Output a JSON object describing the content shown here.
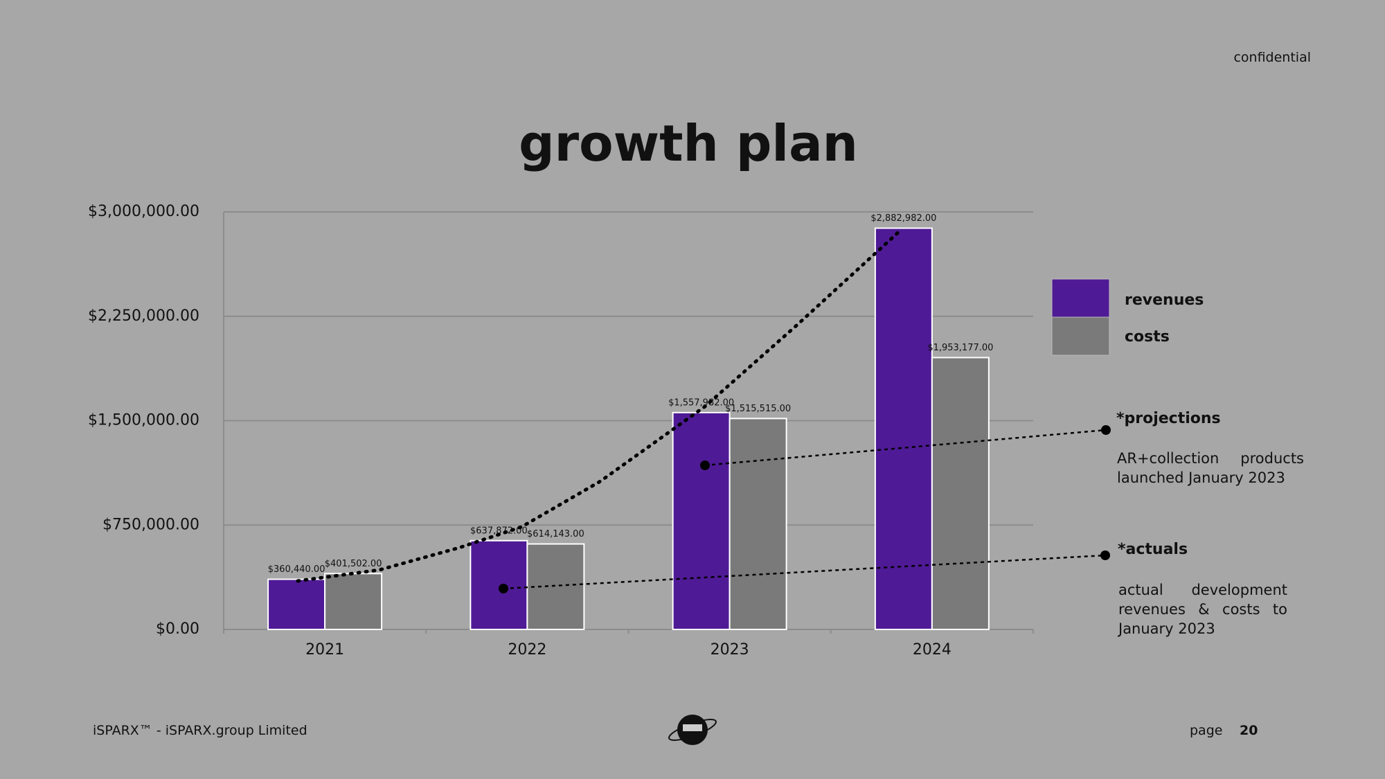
{
  "header": {
    "tag": "confidential"
  },
  "chart_data": {
    "type": "bar",
    "title": "growth plan",
    "categories": [
      "2021",
      "2022",
      "2023",
      "2024"
    ],
    "series": [
      {
        "name": "revenues",
        "color": "#4f1a96",
        "values": [
          360440,
          637872,
          1557982,
          2882982
        ],
        "value_labels": [
          "$360,440.00",
          "$637,872.00",
          "$1,557,982.00",
          "$2,882,982.00"
        ]
      },
      {
        "name": "costs",
        "color": "#7a7a7a",
        "values": [
          401502,
          614143,
          1515515,
          1953177
        ],
        "value_labels": [
          "$401,502.00",
          "$614,143.00",
          "$1,515,515.00",
          "$1,953,177.00"
        ]
      }
    ],
    "ylim": [
      0,
      3000000
    ],
    "yticks": [
      {
        "value": 0,
        "label": "$0.00"
      },
      {
        "value": 750000,
        "label": "$750,000.00"
      },
      {
        "value": 1500000,
        "label": "$1,500,000.00"
      },
      {
        "value": 2250000,
        "label": "$2,250,000.00"
      },
      {
        "value": 3000000,
        "label": "$3,000,000.00"
      }
    ],
    "grid": true,
    "annotations": [
      {
        "title": "*projections",
        "text": "AR+collection products launched January 2023"
      },
      {
        "title": "*actuals",
        "text": "actual development revenues & costs to January 2023"
      }
    ]
  },
  "footer": {
    "company": "iSPARX™ - iSPARX.group Limited",
    "page_label": "page",
    "page_number": "20"
  }
}
